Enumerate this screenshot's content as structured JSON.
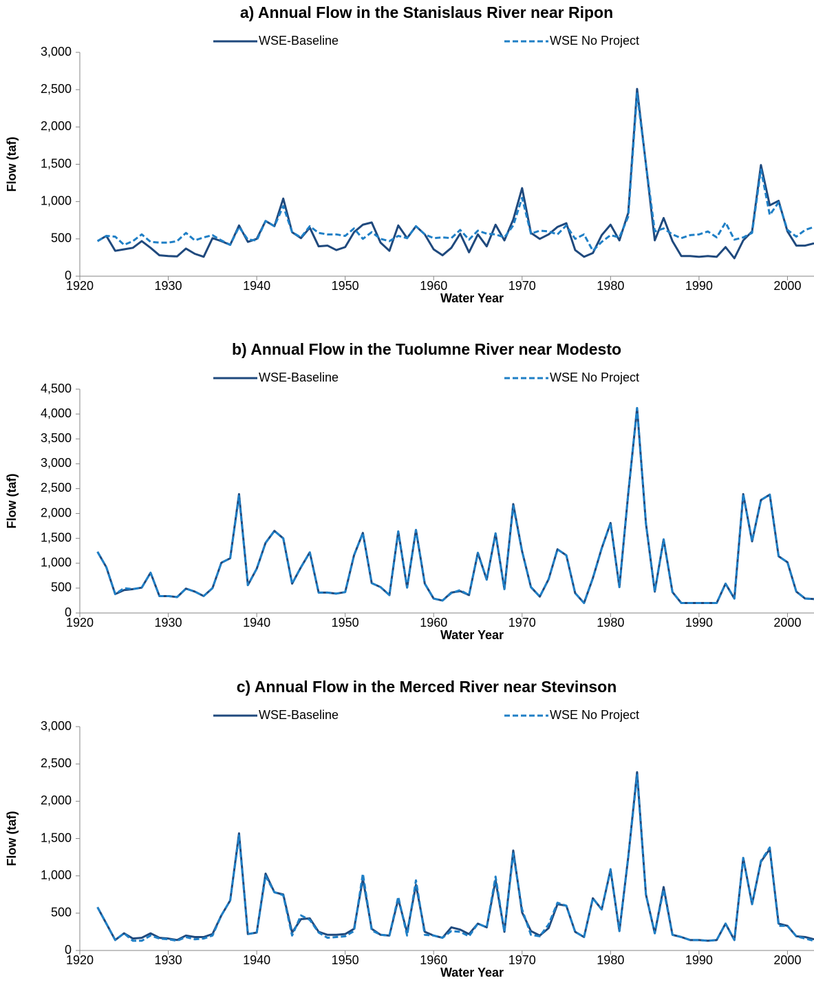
{
  "chart_data": [
    {
      "type": "line",
      "title": "a) Annual Flow in the Stanislaus River near Ripon",
      "x_label": "Water Year",
      "y_label": "Flow (taf)",
      "x": [
        1922,
        1923,
        1924,
        1925,
        1926,
        1927,
        1928,
        1929,
        1930,
        1931,
        1932,
        1933,
        1934,
        1935,
        1936,
        1937,
        1938,
        1939,
        1940,
        1941,
        1942,
        1943,
        1944,
        1945,
        1946,
        1947,
        1948,
        1949,
        1950,
        1951,
        1952,
        1953,
        1954,
        1955,
        1956,
        1957,
        1958,
        1959,
        1960,
        1961,
        1962,
        1963,
        1964,
        1965,
        1966,
        1967,
        1968,
        1969,
        1970,
        1971,
        1972,
        1973,
        1974,
        1975,
        1976,
        1977,
        1978,
        1979,
        1980,
        1981,
        1982,
        1983,
        1984,
        1985,
        1986,
        1987,
        1988,
        1989,
        1990,
        1991,
        1992,
        1993,
        1994,
        1995,
        1996,
        1997,
        1998,
        1999,
        2000,
        2001,
        2002,
        2003
      ],
      "xlim": [
        1920,
        2003
      ],
      "xticks": [
        1920,
        1930,
        1940,
        1950,
        1960,
        1970,
        1980,
        1990,
        2000
      ],
      "ylim": [
        0,
        3000
      ],
      "yticks": [
        0,
        500,
        {
          "value": 1000,
          "label": "1,000"
        },
        {
          "value": 1500,
          "label": "1,500"
        },
        {
          "value": 2000,
          "label": "2,000"
        },
        {
          "value": 2500,
          "label": "2,500"
        },
        {
          "value": 3000,
          "label": "3,000"
        }
      ],
      "series": [
        {
          "name": "WSE-Baseline",
          "color": "#1f497d",
          "dash": false,
          "values": [
            470,
            540,
            340,
            360,
            380,
            470,
            380,
            280,
            270,
            265,
            370,
            300,
            260,
            510,
            470,
            420,
            680,
            460,
            500,
            740,
            670,
            1040,
            590,
            510,
            650,
            400,
            410,
            350,
            390,
            590,
            690,
            720,
            450,
            340,
            680,
            510,
            670,
            560,
            360,
            280,
            380,
            570,
            320,
            560,
            400,
            690,
            480,
            760,
            1180,
            580,
            500,
            560,
            660,
            710,
            350,
            260,
            310,
            550,
            690,
            480,
            850,
            2510,
            1500,
            480,
            780,
            470,
            270,
            270,
            260,
            270,
            260,
            390,
            240,
            480,
            600,
            1490,
            950,
            1010,
            600,
            410,
            410,
            440
          ]
        },
        {
          "name": "WSE No Project",
          "color": "#1f7fc6",
          "dash": true,
          "values": [
            470,
            540,
            530,
            420,
            470,
            560,
            460,
            450,
            450,
            470,
            580,
            480,
            520,
            550,
            480,
            420,
            660,
            490,
            480,
            740,
            670,
            940,
            590,
            520,
            670,
            580,
            560,
            560,
            540,
            640,
            500,
            590,
            500,
            470,
            540,
            510,
            670,
            560,
            510,
            520,
            510,
            620,
            490,
            610,
            570,
            560,
            520,
            680,
            1050,
            570,
            610,
            600,
            560,
            680,
            500,
            560,
            340,
            460,
            550,
            520,
            800,
            2450,
            1500,
            600,
            640,
            560,
            510,
            550,
            560,
            600,
            520,
            720,
            490,
            520,
            580,
            1430,
            820,
            990,
            620,
            530,
            620,
            660
          ]
        }
      ]
    },
    {
      "type": "line",
      "title": "b) Annual Flow in the Tuolumne River near Modesto",
      "x_label": "Water Year",
      "y_label": "Flow (taf)",
      "x": [
        1922,
        1923,
        1924,
        1925,
        1926,
        1927,
        1928,
        1929,
        1930,
        1931,
        1932,
        1933,
        1934,
        1935,
        1936,
        1937,
        1938,
        1939,
        1940,
        1941,
        1942,
        1943,
        1944,
        1945,
        1946,
        1947,
        1948,
        1949,
        1950,
        1951,
        1952,
        1953,
        1954,
        1955,
        1956,
        1957,
        1958,
        1959,
        1960,
        1961,
        1962,
        1963,
        1964,
        1965,
        1966,
        1967,
        1968,
        1969,
        1970,
        1971,
        1972,
        1973,
        1974,
        1975,
        1976,
        1977,
        1978,
        1979,
        1980,
        1981,
        1982,
        1983,
        1984,
        1985,
        1986,
        1987,
        1988,
        1989,
        1990,
        1991,
        1992,
        1993,
        1994,
        1995,
        1996,
        1997,
        1998,
        1999,
        2000,
        2001,
        2002,
        2003
      ],
      "xlim": [
        1920,
        2003
      ],
      "xticks": [
        1920,
        1930,
        1940,
        1950,
        1960,
        1970,
        1980,
        1990,
        2000
      ],
      "ylim": [
        0,
        4500
      ],
      "yticks": [
        0,
        500,
        {
          "value": 1000,
          "label": "1,000"
        },
        {
          "value": 1500,
          "label": "1,500"
        },
        {
          "value": 2000,
          "label": "2,000"
        },
        {
          "value": 2500,
          "label": "2,500"
        },
        {
          "value": 3000,
          "label": "3,000"
        },
        {
          "value": 3500,
          "label": "3,500"
        },
        {
          "value": 4000,
          "label": "4,000"
        },
        {
          "value": 4500,
          "label": "4,500"
        }
      ],
      "series": [
        {
          "name": "WSE-Baseline",
          "color": "#1f497d",
          "dash": false,
          "values": [
            1230,
            920,
            380,
            460,
            480,
            510,
            810,
            340,
            340,
            320,
            490,
            430,
            340,
            500,
            1010,
            1100,
            2390,
            560,
            890,
            1410,
            1650,
            1500,
            590,
            920,
            1220,
            410,
            410,
            390,
            420,
            1160,
            1610,
            600,
            520,
            360,
            1640,
            510,
            1670,
            590,
            290,
            250,
            410,
            440,
            360,
            1210,
            670,
            1600,
            480,
            2190,
            1240,
            520,
            330,
            680,
            1280,
            1160,
            400,
            200,
            700,
            1300,
            1810,
            520,
            2400,
            4120,
            1800,
            430,
            1480,
            420,
            200,
            200,
            200,
            200,
            200,
            590,
            290,
            2390,
            1440,
            2270,
            2380,
            1140,
            1020,
            430,
            290,
            280
          ]
        },
        {
          "name": "WSE No Project",
          "color": "#1f7fc6",
          "dash": true,
          "values": [
            1230,
            920,
            380,
            500,
            480,
            510,
            810,
            340,
            340,
            320,
            490,
            430,
            340,
            500,
            1010,
            1100,
            2350,
            560,
            890,
            1410,
            1650,
            1500,
            590,
            920,
            1220,
            410,
            410,
            390,
            420,
            1160,
            1610,
            600,
            520,
            360,
            1640,
            510,
            1670,
            590,
            290,
            250,
            400,
            460,
            360,
            1210,
            670,
            1600,
            480,
            2150,
            1240,
            520,
            330,
            680,
            1280,
            1160,
            400,
            200,
            700,
            1300,
            1810,
            520,
            2400,
            4120,
            1800,
            430,
            1480,
            420,
            200,
            200,
            200,
            200,
            200,
            590,
            290,
            2390,
            1440,
            2270,
            2380,
            1140,
            1020,
            430,
            290,
            280
          ]
        }
      ]
    },
    {
      "type": "line",
      "title": "c) Annual Flow in the Merced River near Stevinson",
      "x_label": "Water Year",
      "y_label": "Flow (taf)",
      "x": [
        1922,
        1923,
        1924,
        1925,
        1926,
        1927,
        1928,
        1929,
        1930,
        1931,
        1932,
        1933,
        1934,
        1935,
        1936,
        1937,
        1938,
        1939,
        1940,
        1941,
        1942,
        1943,
        1944,
        1945,
        1946,
        1947,
        1948,
        1949,
        1950,
        1951,
        1952,
        1953,
        1954,
        1955,
        1956,
        1957,
        1958,
        1959,
        1960,
        1961,
        1962,
        1963,
        1964,
        1965,
        1966,
        1967,
        1968,
        1969,
        1970,
        1971,
        1972,
        1973,
        1974,
        1975,
        1976,
        1977,
        1978,
        1979,
        1980,
        1981,
        1982,
        1983,
        1984,
        1985,
        1986,
        1987,
        1988,
        1989,
        1990,
        1991,
        1992,
        1993,
        1994,
        1995,
        1996,
        1997,
        1998,
        1999,
        2000,
        2001,
        2002,
        2003
      ],
      "xlim": [
        1920,
        2003
      ],
      "xticks": [
        1920,
        1930,
        1940,
        1950,
        1960,
        1970,
        1980,
        1990,
        2000
      ],
      "ylim": [
        0,
        3000
      ],
      "yticks": [
        0,
        500,
        {
          "value": 1000,
          "label": "1,000"
        },
        {
          "value": 1500,
          "label": "1,500"
        },
        {
          "value": 2000,
          "label": "2,000"
        },
        {
          "value": 2500,
          "label": "2,500"
        },
        {
          "value": 3000,
          "label": "3,000"
        }
      ],
      "series": [
        {
          "name": "WSE-Baseline",
          "color": "#1f497d",
          "dash": false,
          "values": [
            580,
            360,
            140,
            230,
            160,
            170,
            230,
            170,
            160,
            140,
            200,
            180,
            180,
            220,
            470,
            670,
            1570,
            220,
            240,
            1030,
            780,
            750,
            240,
            420,
            430,
            250,
            210,
            210,
            220,
            290,
            960,
            290,
            210,
            200,
            690,
            240,
            880,
            250,
            200,
            170,
            310,
            280,
            220,
            360,
            310,
            940,
            250,
            1340,
            510,
            260,
            200,
            300,
            620,
            600,
            250,
            180,
            700,
            550,
            1080,
            260,
            1250,
            2390,
            750,
            230,
            850,
            210,
            180,
            140,
            140,
            130,
            140,
            360,
            140,
            1240,
            620,
            1190,
            1360,
            360,
            330,
            190,
            180,
            150
          ]
        },
        {
          "name": "WSE No Project",
          "color": "#1f7fc6",
          "dash": true,
          "values": [
            580,
            360,
            140,
            230,
            130,
            130,
            200,
            160,
            150,
            130,
            180,
            150,
            160,
            200,
            470,
            670,
            1540,
            220,
            240,
            1000,
            780,
            740,
            200,
            470,
            410,
            240,
            170,
            180,
            190,
            260,
            1030,
            270,
            210,
            200,
            720,
            200,
            940,
            210,
            200,
            170,
            260,
            250,
            190,
            360,
            310,
            990,
            250,
            1300,
            550,
            210,
            190,
            350,
            640,
            600,
            250,
            180,
            700,
            550,
            1090,
            260,
            1250,
            2350,
            750,
            230,
            820,
            210,
            180,
            140,
            140,
            130,
            140,
            360,
            140,
            1240,
            620,
            1200,
            1380,
            330,
            330,
            190,
            160,
            130
          ]
        }
      ]
    }
  ]
}
